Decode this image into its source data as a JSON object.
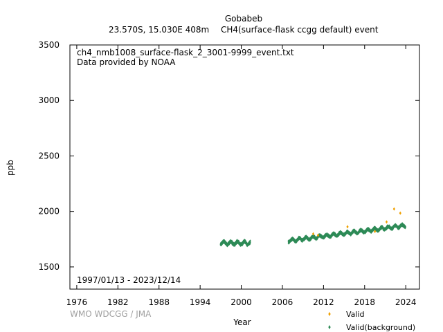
{
  "header": {
    "station": "Gobabeb",
    "location": "23.570S, 15.030E 408m",
    "dataset": "CH4(surface-flask ccgg default) event"
  },
  "annotations": {
    "filename": "ch4_nmb1008_surface-flask_2_3001-9999_event.txt",
    "provider": "Data provided by NOAA",
    "period": "1997/01/13 - 2023/12/14"
  },
  "watermark": "WMO WDCGG / JMA",
  "colors": {
    "valid": "#f0a000",
    "background": "#2e8b57"
  },
  "chart_data": {
    "type": "scatter",
    "xlabel": "Year",
    "ylabel": "ppb",
    "xlim": [
      1975,
      2026
    ],
    "ylim": [
      1300,
      3500
    ],
    "x_ticks": [
      1976,
      1982,
      1988,
      1994,
      2000,
      2006,
      2012,
      2018,
      2024
    ],
    "y_ticks": [
      1500,
      2000,
      2500,
      3000,
      3500
    ],
    "legend": {
      "placement": "bottom-right",
      "entries": [
        "Valid",
        "Valid(background)"
      ]
    },
    "series": [
      {
        "name": "Valid",
        "points": [
          [
            2010.5,
            1798
          ],
          [
            2015.5,
            1862
          ],
          [
            2021.2,
            1905
          ],
          [
            2022.3,
            2022
          ],
          [
            2023.2,
            1985
          ],
          [
            2011.2,
            1785
          ],
          [
            2019.5,
            1820
          ]
        ]
      },
      {
        "name": "Valid(background)",
        "segments": [
          {
            "start": 1997.0,
            "end": 2001.3,
            "base": 1715,
            "trend": 0.0,
            "amp": 14,
            "jitter": 12
          },
          {
            "start": 2006.9,
            "end": 2023.95,
            "base": 1735,
            "trend": 8.1,
            "amp": 12,
            "jitter": 10
          }
        ]
      }
    ]
  }
}
